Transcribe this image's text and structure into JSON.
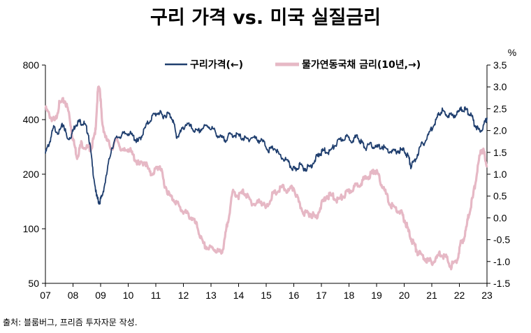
{
  "chart_data": {
    "type": "line",
    "title": "구리 가격 vs. 미국 실질금리",
    "left_axis": {
      "scale": "log",
      "ylim": [
        50,
        800
      ],
      "ticks": [
        "800",
        "400",
        "200",
        "100",
        "50"
      ]
    },
    "right_axis": {
      "unit_label": "%",
      "ylim": [
        -1.5,
        3.5
      ],
      "ticks": [
        "3.5",
        "3.0",
        "2.5",
        "2.0",
        "1.5",
        "1.0",
        "0.5",
        "0.0",
        "-0.5",
        "-1.0",
        "-1.5"
      ]
    },
    "x_axis": {
      "range": [
        2007,
        2023
      ],
      "ticks": [
        "07",
        "08",
        "09",
        "10",
        "11",
        "12",
        "13",
        "14",
        "15",
        "16",
        "17",
        "18",
        "19",
        "20",
        "21",
        "22",
        "23"
      ]
    },
    "series": [
      {
        "name": "구리가격(←)",
        "axis": "left",
        "color": "#1f3e6e",
        "x": [
          2007.0,
          2007.15,
          2007.3,
          2007.5,
          2007.65,
          2007.8,
          2007.95,
          2008.1,
          2008.25,
          2008.4,
          2008.55,
          2008.7,
          2008.85,
          2008.95,
          2009.05,
          2009.2,
          2009.4,
          2009.6,
          2009.8,
          2010.0,
          2010.2,
          2010.35,
          2010.5,
          2010.7,
          2010.9,
          2011.1,
          2011.25,
          2011.45,
          2011.6,
          2011.75,
          2011.9,
          2012.1,
          2012.3,
          2012.5,
          2012.7,
          2012.9,
          2013.1,
          2013.3,
          2013.5,
          2013.7,
          2013.9,
          2014.1,
          2014.3,
          2014.5,
          2014.7,
          2014.9,
          2015.1,
          2015.3,
          2015.5,
          2015.7,
          2015.9,
          2016.05,
          2016.2,
          2016.4,
          2016.6,
          2016.8,
          2016.95,
          2017.1,
          2017.3,
          2017.5,
          2017.7,
          2017.9,
          2018.1,
          2018.3,
          2018.45,
          2018.6,
          2018.8,
          2019.0,
          2019.2,
          2019.4,
          2019.6,
          2019.8,
          2020.0,
          2020.15,
          2020.25,
          2020.4,
          2020.6,
          2020.8,
          2021.0,
          2021.2,
          2021.35,
          2021.5,
          2021.7,
          2021.9,
          2022.1,
          2022.25,
          2022.4,
          2022.55,
          2022.7,
          2022.85,
          2023.0
        ],
        "values": [
          260,
          300,
          360,
          340,
          380,
          310,
          330,
          380,
          390,
          380,
          340,
          220,
          150,
          140,
          150,
          190,
          280,
          320,
          330,
          340,
          320,
          300,
          330,
          380,
          420,
          440,
          420,
          430,
          410,
          320,
          340,
          380,
          360,
          340,
          360,
          370,
          350,
          320,
          310,
          330,
          330,
          320,
          310,
          320,
          310,
          300,
          270,
          280,
          250,
          240,
          220,
          210,
          225,
          215,
          220,
          245,
          260,
          270,
          265,
          290,
          310,
          320,
          310,
          320,
          300,
          280,
          290,
          280,
          285,
          270,
          265,
          270,
          270,
          250,
          220,
          240,
          285,
          310,
          360,
          410,
          450,
          430,
          420,
          430,
          460,
          450,
          430,
          380,
          350,
          360,
          410
        ]
      },
      {
        "name": "물가연동국채 금리(10년,→)",
        "axis": "right",
        "color": "#e6b8c5",
        "x": [
          2007.0,
          2007.2,
          2007.35,
          2007.5,
          2007.7,
          2007.85,
          2008.0,
          2008.15,
          2008.3,
          2008.5,
          2008.65,
          2008.8,
          2008.9,
          2008.97,
          2009.05,
          2009.2,
          2009.4,
          2009.6,
          2009.8,
          2010.0,
          2010.2,
          2010.4,
          2010.6,
          2010.8,
          2011.0,
          2011.15,
          2011.3,
          2011.5,
          2011.7,
          2011.9,
          2012.1,
          2012.3,
          2012.5,
          2012.7,
          2012.9,
          2013.1,
          2013.3,
          2013.45,
          2013.6,
          2013.8,
          2014.0,
          2014.2,
          2014.4,
          2014.6,
          2014.8,
          2015.0,
          2015.2,
          2015.4,
          2015.6,
          2015.8,
          2016.0,
          2016.2,
          2016.4,
          2016.6,
          2016.8,
          2017.0,
          2017.2,
          2017.4,
          2017.6,
          2017.8,
          2018.0,
          2018.2,
          2018.4,
          2018.6,
          2018.8,
          2018.95,
          2019.1,
          2019.3,
          2019.5,
          2019.7,
          2019.9,
          2020.05,
          2020.2,
          2020.35,
          2020.5,
          2020.7,
          2020.9,
          2021.1,
          2021.3,
          2021.5,
          2021.7,
          2021.9,
          2022.05,
          2022.2,
          2022.35,
          2022.5,
          2022.65,
          2022.8,
          2022.9,
          2023.0
        ],
        "values": [
          2.5,
          2.3,
          2.2,
          2.6,
          2.7,
          2.4,
          1.8,
          1.4,
          1.7,
          1.6,
          1.6,
          1.9,
          2.9,
          3.0,
          2.2,
          1.8,
          1.6,
          1.8,
          1.5,
          1.6,
          1.4,
          1.2,
          1.3,
          1.0,
          1.1,
          1.2,
          0.8,
          0.5,
          0.4,
          0.2,
          0.1,
          0.0,
          -0.2,
          -0.6,
          -0.7,
          -0.7,
          -0.8,
          -0.7,
          -0.1,
          0.6,
          0.5,
          0.6,
          0.4,
          0.3,
          0.4,
          0.2,
          0.5,
          0.6,
          0.7,
          0.6,
          0.7,
          0.3,
          0.1,
          0.1,
          0.0,
          0.3,
          0.5,
          0.5,
          0.4,
          0.5,
          0.6,
          0.7,
          0.8,
          0.9,
          1.0,
          1.1,
          0.9,
          0.6,
          0.3,
          0.2,
          0.1,
          -0.1,
          -0.4,
          -0.6,
          -0.8,
          -0.9,
          -1.0,
          -1.0,
          -0.8,
          -0.9,
          -1.1,
          -1.0,
          -0.6,
          -0.4,
          0.1,
          0.5,
          1.1,
          1.6,
          1.5,
          1.2
        ]
      }
    ]
  },
  "source_note": "출처: 블룸버그, 프리즘 투자자문 작성."
}
